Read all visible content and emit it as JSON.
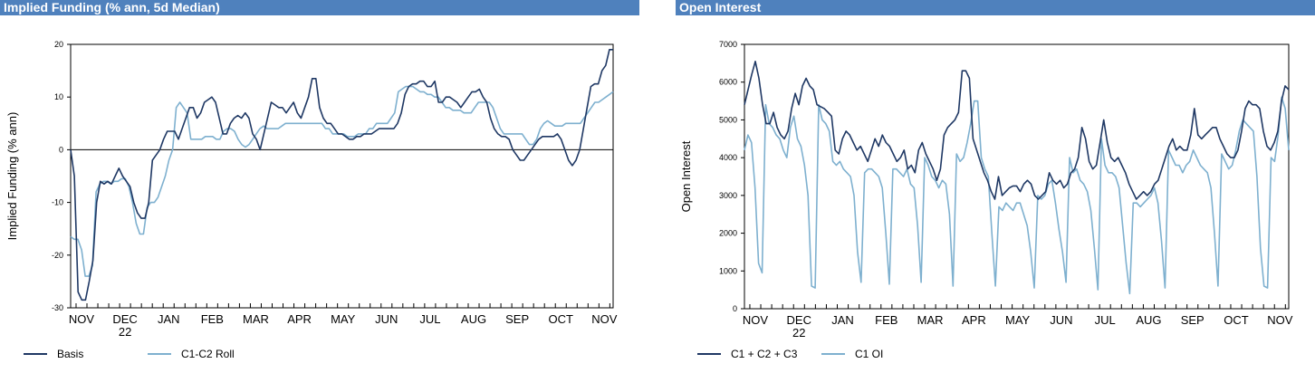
{
  "colors": {
    "header_bg": "#4f81bd",
    "header_text": "#ffffff",
    "dark_series": "#1f3864",
    "light_series": "#7eb0cf"
  },
  "chart_data": [
    {
      "type": "line",
      "title": "Implied Funding (% ann, 5d Median)",
      "ylabel": "Implied Funding (% ann)",
      "xlabel": "",
      "ylim": [
        -30,
        20
      ],
      "yticks": [
        -30,
        -20,
        -10,
        0,
        10,
        20
      ],
      "month_labels": [
        "NOV",
        "DEC",
        "JAN",
        "FEB",
        "MAR",
        "APR",
        "MAY",
        "JUN",
        "JUL",
        "AUG",
        "SEP",
        "OCT",
        "NOV"
      ],
      "month_sub_labels": [
        "",
        "22",
        "",
        "",
        "",
        "",
        "",
        "",
        "",
        "",
        "",
        "",
        ""
      ],
      "zero_line": true,
      "legend_position": "bottom-left",
      "series": [
        {
          "name": "Basis",
          "color": "#1f3864",
          "values": [
            0,
            -5,
            -27,
            -28.5,
            -28.5,
            -25,
            -21,
            -10,
            -6,
            -6.5,
            -6,
            -6.5,
            -5,
            -3.5,
            -5,
            -6,
            -7,
            -10,
            -12,
            -13,
            -13,
            -10,
            -2,
            -1,
            0,
            2,
            3.5,
            3.5,
            3.5,
            2,
            4,
            6,
            8,
            8,
            6,
            7,
            9,
            9.5,
            10,
            9,
            6,
            3,
            3,
            5,
            6,
            6.5,
            6,
            7,
            6,
            3,
            2,
            0,
            3,
            6,
            9,
            8.5,
            8,
            8,
            7,
            8,
            9,
            7,
            6,
            8,
            10,
            13.5,
            13.5,
            8,
            6,
            5,
            5,
            4,
            3,
            3,
            2.5,
            2,
            2,
            2.5,
            2.5,
            3,
            3,
            3,
            3.5,
            4,
            4,
            4,
            4,
            4,
            5,
            7,
            10.5,
            12,
            12.5,
            12.5,
            13,
            13,
            12,
            12,
            13,
            9,
            9,
            10,
            10,
            9.5,
            9,
            8,
            9,
            10,
            11,
            11,
            11.5,
            10,
            9,
            6,
            4,
            3,
            2.5,
            2.5,
            2,
            0,
            -1,
            -2,
            -2,
            -1,
            0,
            1,
            2,
            2.5,
            2.5,
            2.5,
            2.5,
            3,
            2,
            0,
            -2,
            -3,
            -2,
            0,
            4,
            8,
            12,
            12.5,
            12.5,
            15,
            16,
            19,
            19
          ]
        },
        {
          "name": "C1-C2 Roll",
          "color": "#7eb0cf",
          "values": [
            -16.5,
            -17,
            -17,
            -19,
            -24,
            -24,
            -22,
            -8,
            -6.5,
            -6,
            -6,
            -6.5,
            -6,
            -6,
            -5.5,
            -5.5,
            -7,
            -10,
            -14,
            -16,
            -16,
            -11,
            -10,
            -10,
            -9,
            -7,
            -5,
            -2,
            0,
            8,
            9,
            8,
            7,
            2,
            2,
            2,
            2,
            2.5,
            2.5,
            2.5,
            2,
            2,
            3.5,
            4,
            4,
            3.5,
            2,
            1,
            0.5,
            1,
            2,
            3,
            4,
            4.5,
            4,
            4,
            4,
            4,
            4.5,
            5,
            5,
            5,
            5,
            5,
            5,
            5,
            5,
            5,
            5,
            5,
            4,
            4,
            3,
            3,
            3,
            3,
            2.5,
            2.5,
            2.5,
            3,
            3,
            3,
            4,
            4,
            5,
            5,
            5,
            5,
            6,
            7,
            11,
            11.5,
            12,
            12,
            12,
            11.5,
            11,
            11,
            10.5,
            10.5,
            10,
            10,
            9,
            8,
            8,
            7.5,
            7.5,
            7.5,
            7,
            7,
            7,
            8,
            9,
            9,
            9,
            9,
            8,
            6,
            4,
            3,
            3,
            3,
            3,
            3,
            3,
            2,
            1,
            1,
            2,
            4,
            5,
            5.5,
            5,
            4.5,
            4.5,
            4.5,
            5,
            5,
            5,
            5,
            5,
            6,
            7,
            8,
            9,
            9,
            9.5,
            10,
            10.5,
            11
          ]
        }
      ]
    },
    {
      "type": "line",
      "title": "Open Interest",
      "ylabel": "Open Interest",
      "xlabel": "",
      "ylim": [
        0,
        7000
      ],
      "yticks": [
        0,
        1000,
        2000,
        3000,
        4000,
        5000,
        6000,
        7000
      ],
      "month_labels": [
        "NOV",
        "DEC",
        "JAN",
        "FEB",
        "MAR",
        "APR",
        "MAY",
        "JUN",
        "JUL",
        "AUG",
        "SEP",
        "OCT",
        "NOV"
      ],
      "month_sub_labels": [
        "",
        "22",
        "",
        "",
        "",
        "",
        "",
        "",
        "",
        "",
        "",
        "",
        ""
      ],
      "zero_line": false,
      "legend_position": "bottom-left",
      "series": [
        {
          "name": "C1 + C2 + C3",
          "color": "#1f3864",
          "values": [
            5400,
            5800,
            6200,
            6550,
            6100,
            5400,
            4900,
            4900,
            5200,
            4800,
            4600,
            4500,
            4700,
            5300,
            5700,
            5400,
            5900,
            6100,
            5900,
            5800,
            5400,
            5350,
            5300,
            5200,
            5100,
            4200,
            4100,
            4500,
            4700,
            4600,
            4400,
            4200,
            4300,
            4100,
            3900,
            4200,
            4500,
            4300,
            4600,
            4400,
            4300,
            4100,
            3900,
            4000,
            4200,
            3700,
            3800,
            3600,
            4200,
            4400,
            4100,
            3900,
            3700,
            3400,
            3700,
            4600,
            4800,
            4900,
            5000,
            5200,
            6300,
            6300,
            6100,
            4500,
            4200,
            3900,
            3600,
            3400,
            3100,
            2900,
            3500,
            3000,
            3100,
            3200,
            3250,
            3250,
            3100,
            3300,
            3400,
            3300,
            3000,
            2900,
            3000,
            3100,
            3600,
            3400,
            3300,
            3400,
            3200,
            3300,
            3600,
            3700,
            4000,
            4800,
            4500,
            3900,
            3700,
            3800,
            4400,
            5000,
            4400,
            4000,
            3900,
            4000,
            3800,
            3600,
            3300,
            3100,
            2900,
            3000,
            3100,
            3000,
            3100,
            3300,
            3400,
            3700,
            4000,
            4300,
            4500,
            4200,
            4300,
            4200,
            4200,
            4600,
            5300,
            4600,
            4500,
            4600,
            4700,
            4800,
            4800,
            4500,
            4300,
            4100,
            4000,
            4000,
            4200,
            4700,
            5300,
            5500,
            5400,
            5400,
            5300,
            4700,
            4300,
            4200,
            4400,
            4700,
            5500,
            5900,
            5800
          ]
        },
        {
          "name": "C1 OI",
          "color": "#7eb0cf",
          "values": [
            4200,
            4600,
            4400,
            3200,
            1200,
            950,
            5400,
            4900,
            4800,
            4600,
            4500,
            4200,
            4000,
            4800,
            5100,
            4500,
            4300,
            3800,
            3000,
            600,
            550,
            5400,
            5000,
            4900,
            4700,
            3900,
            3800,
            3900,
            3700,
            3600,
            3500,
            3000,
            1500,
            700,
            3600,
            3700,
            3700,
            3600,
            3500,
            3200,
            2000,
            650,
            3700,
            3700,
            3600,
            3500,
            3700,
            3300,
            3200,
            2200,
            700,
            4000,
            3800,
            3500,
            3400,
            3200,
            3400,
            3300,
            2500,
            600,
            4100,
            3900,
            4000,
            4400,
            4900,
            5500,
            5500,
            4000,
            3700,
            3500,
            2000,
            600,
            2700,
            2600,
            2800,
            2700,
            2600,
            2800,
            2800,
            2500,
            2200,
            1500,
            550,
            3000,
            2900,
            3000,
            3300,
            3400,
            2800,
            2100,
            1500,
            700,
            4000,
            3600,
            3700,
            3400,
            3300,
            3100,
            2600,
            1600,
            500,
            4500,
            3800,
            3600,
            3600,
            3500,
            3200,
            2200,
            1200,
            400,
            2800,
            2800,
            2700,
            2800,
            2900,
            3000,
            3200,
            2800,
            1800,
            550,
            4200,
            4000,
            3800,
            3800,
            3600,
            3800,
            3900,
            4200,
            4000,
            3800,
            3700,
            3600,
            3200,
            2000,
            600,
            4100,
            3900,
            3700,
            3800,
            4200,
            4700,
            5000,
            4900,
            4800,
            4700,
            3500,
            1600,
            600,
            550,
            4000,
            3900,
            4600,
            5600,
            5300,
            4200
          ]
        }
      ]
    }
  ]
}
